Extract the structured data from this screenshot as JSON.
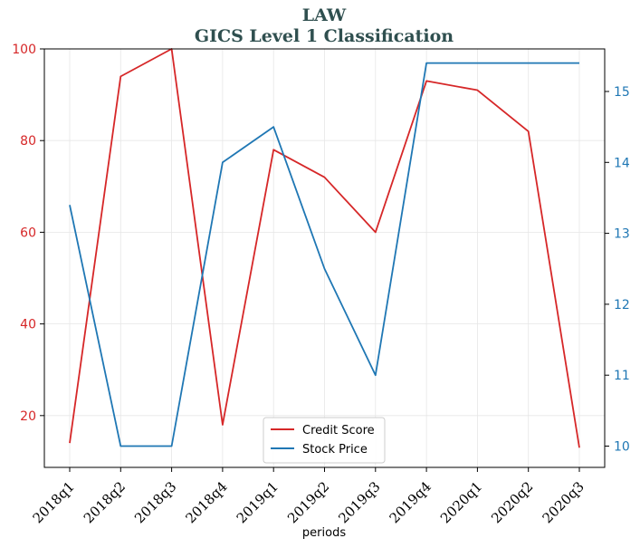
{
  "chart_data": {
    "type": "line",
    "title": "LAW",
    "subtitle": "GICS Level 1 Classification",
    "xlabel": "periods",
    "categories": [
      "2018q1",
      "2018q2",
      "2018q3",
      "2018q4",
      "2019q1",
      "2019q2",
      "2019q3",
      "2019q4",
      "2020q1",
      "2020q2",
      "2020q3"
    ],
    "series": [
      {
        "name": "Credit Score",
        "axis": "left",
        "color": "#d62728",
        "values": [
          14,
          94,
          100,
          18,
          78,
          72,
          60,
          93,
          91,
          82,
          13
        ]
      },
      {
        "name": "Stock Price",
        "axis": "right",
        "color": "#1f77b4",
        "values": [
          13.4,
          10.0,
          10.0,
          14.0,
          14.5,
          12.5,
          11.0,
          15.4,
          15.4,
          15.4,
          15.4
        ]
      }
    ],
    "y_left": {
      "ticks": [
        20,
        40,
        60,
        80,
        100
      ],
      "lim": [
        8.7,
        100
      ],
      "color": "#d62728"
    },
    "y_right": {
      "ticks": [
        10,
        11,
        12,
        13,
        14,
        15
      ],
      "lim": [
        9.7,
        15.6
      ],
      "color": "#1f77b4"
    },
    "grid": true,
    "legend_position": "bottom-center"
  }
}
